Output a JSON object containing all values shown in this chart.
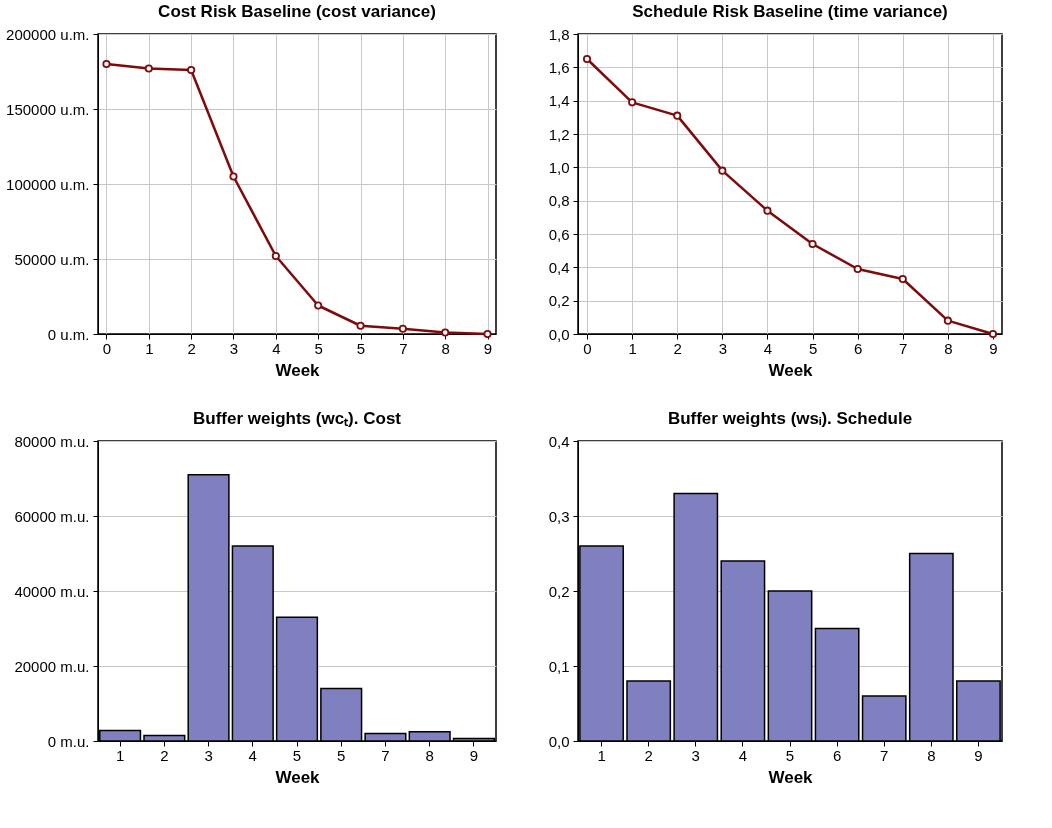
{
  "chart_data": [
    {
      "type": "line",
      "title": "Cost Risk Baseline (cost variance)",
      "xlabel": "Week",
      "categories": [
        "0",
        "1",
        "2",
        "3",
        "4",
        "5",
        "5",
        "7",
        "8",
        "9"
      ],
      "series": [
        {
          "color": "#7f0a0a",
          "values": [
            180000,
            177000,
            176000,
            105000,
            52000,
            19000,
            5500,
            3500,
            1000,
            0
          ]
        }
      ],
      "ylim": [
        0,
        200000
      ],
      "yticks": [
        {
          "value": 0,
          "label": "0 u.m."
        },
        {
          "value": 50000,
          "label": "50000 u.m."
        },
        {
          "value": 100000,
          "label": "100000 u.m."
        },
        {
          "value": 150000,
          "label": "150000 u.m."
        },
        {
          "value": 200000,
          "label": "200000 u.m."
        }
      ],
      "grid": true,
      "marker": "circle",
      "line_style": "solid"
    },
    {
      "type": "line",
      "title": "Schedule Risk Baseline (time variance)",
      "xlabel": "Week",
      "categories": [
        "0",
        "1",
        "2",
        "3",
        "4",
        "5",
        "6",
        "7",
        "8",
        "9"
      ],
      "series": [
        {
          "color": "#7f0a0a",
          "values": [
            1.65,
            1.39,
            1.31,
            0.98,
            0.74,
            0.54,
            0.39,
            0.33,
            0.08,
            0
          ]
        }
      ],
      "ylim": [
        0,
        1.8
      ],
      "yticks": [
        {
          "value": 0,
          "label": "0,0"
        },
        {
          "value": 0.2,
          "label": "0,2"
        },
        {
          "value": 0.4,
          "label": "0,4"
        },
        {
          "value": 0.6,
          "label": "0,6"
        },
        {
          "value": 0.8,
          "label": "0,8"
        },
        {
          "value": 1,
          "label": "1,0"
        },
        {
          "value": 1.2,
          "label": "1,2"
        },
        {
          "value": 1.4,
          "label": "1,4"
        },
        {
          "value": 1.6,
          "label": "1,6"
        },
        {
          "value": 1.8,
          "label": "1,8"
        }
      ],
      "grid": true,
      "marker": "circle",
      "line_style": "solid"
    },
    {
      "type": "bar",
      "title": "Buffer weights (wcₜ).  Cost",
      "xlabel": "Week",
      "categories": [
        "1",
        "2",
        "3",
        "4",
        "5",
        "5",
        "7",
        "8",
        "9"
      ],
      "series": [
        {
          "color": "#8080c0",
          "values": [
            2800,
            1500,
            71000,
            52000,
            33000,
            14000,
            2000,
            2500,
            700
          ]
        }
      ],
      "ylim": [
        0,
        80000
      ],
      "yticks": [
        {
          "value": 0,
          "label": "0 m.u."
        },
        {
          "value": 20000,
          "label": "20000 m.u."
        },
        {
          "value": 40000,
          "label": "40000 m.u."
        },
        {
          "value": 60000,
          "label": "60000 m.u."
        },
        {
          "value": 80000,
          "label": "80000 m.u."
        }
      ],
      "grid": "y"
    },
    {
      "type": "bar",
      "title": "Buffer weights (wsᵢ). Schedule",
      "xlabel": "Week",
      "categories": [
        "1",
        "2",
        "3",
        "4",
        "5",
        "6",
        "7",
        "8",
        "9"
      ],
      "series": [
        {
          "color": "#8080c0",
          "values": [
            0.26,
            0.08,
            0.33,
            0.24,
            0.2,
            0.15,
            0.06,
            0.25,
            0.08
          ]
        }
      ],
      "ylim": [
        0,
        0.4
      ],
      "yticks": [
        {
          "value": 0,
          "label": "0,0"
        },
        {
          "value": 0.1,
          "label": "0,1"
        },
        {
          "value": 0.2,
          "label": "0,2"
        },
        {
          "value": 0.3,
          "label": "0,3"
        },
        {
          "value": 0.4,
          "label": "0,4"
        }
      ],
      "grid": "y"
    }
  ]
}
